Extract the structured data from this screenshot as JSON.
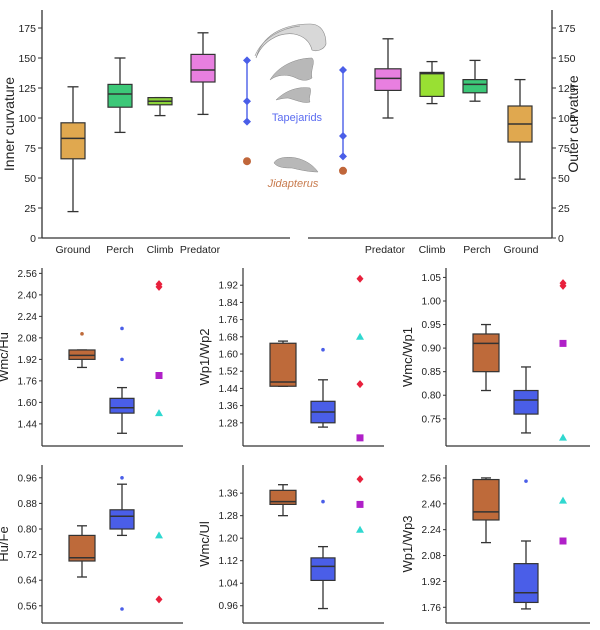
{
  "chart_data": [
    {
      "id": "inner",
      "type": "boxplot",
      "ylabel": "Inner curvature",
      "yaxis_side": "left",
      "ylim": [
        0,
        190
      ],
      "yticks": [
        0,
        25,
        50,
        75,
        100,
        125,
        150,
        175
      ],
      "categories": [
        "Ground",
        "Perch",
        "Climb",
        "Predator"
      ],
      "boxes": [
        {
          "name": "Ground",
          "color": "#E0A84F",
          "min": 22,
          "q1": 66,
          "median": 83,
          "q3": 96,
          "max": 126
        },
        {
          "name": "Perch",
          "color": "#3CC878",
          "min": 88,
          "q1": 109,
          "median": 120,
          "q3": 128,
          "max": 150
        },
        {
          "name": "Climb",
          "color": "#8CD33A",
          "min": 102,
          "q1": 111,
          "median": 114,
          "q3": 117,
          "max": 117
        },
        {
          "name": "Predator",
          "color": "#E87FE0",
          "min": 103,
          "q1": 130,
          "median": 140,
          "q3": 153,
          "max": 171
        }
      ],
      "tapejarids": {
        "label": "Tapejarids",
        "color": "#4A5EE8",
        "values": [
          97,
          114,
          148
        ]
      },
      "jidapterus": {
        "label": "Jidapterus",
        "color": "#C0663A",
        "value": 64
      }
    },
    {
      "id": "outer",
      "type": "boxplot",
      "ylabel": "Outer curvature",
      "yaxis_side": "right",
      "ylim": [
        0,
        190
      ],
      "yticks": [
        0,
        25,
        50,
        75,
        100,
        125,
        150,
        175
      ],
      "categories": [
        "Predator",
        "Climb",
        "Perch",
        "Ground"
      ],
      "boxes": [
        {
          "name": "Predator",
          "color": "#E87FE0",
          "min": 100,
          "q1": 123,
          "median": 133,
          "q3": 141,
          "max": 166
        },
        {
          "name": "Climb",
          "color": "#99E033",
          "min": 112,
          "q1": 118,
          "median": 137,
          "q3": 138,
          "max": 147
        },
        {
          "name": "Perch",
          "color": "#3CC878",
          "min": 114,
          "q1": 121,
          "median": 128,
          "q3": 132,
          "max": 148
        },
        {
          "name": "Ground",
          "color": "#E0A84F",
          "min": 49,
          "q1": 80,
          "median": 95,
          "q3": 110,
          "max": 132
        }
      ],
      "tapejarids": {
        "label": "Tapejarids",
        "color": "#4A5EE8",
        "values": [
          68,
          85,
          140
        ]
      },
      "jidapterus": {
        "label": "Jidapterus",
        "color": "#C0663A",
        "value": 56
      }
    },
    {
      "id": "wmc-hu",
      "type": "boxplot",
      "ylabel": "Wmc/Hu",
      "ylim": [
        1.32,
        2.6
      ],
      "yticks": [
        "1.44",
        "1.60",
        "1.76",
        "1.92",
        "2.08",
        "2.24",
        "2.40",
        "2.56"
      ],
      "brown": {
        "min": 1.86,
        "q1": 1.92,
        "median": 1.95,
        "q3": 1.99,
        "max": 1.99,
        "outliers": [
          2.11
        ]
      },
      "blue": {
        "min": 1.37,
        "q1": 1.52,
        "median": 1.56,
        "q3": 1.63,
        "max": 1.71,
        "outliers": [
          1.92,
          2.15
        ]
      },
      "markers": [
        {
          "shape": "diamond",
          "color": "#E8203C",
          "value": 2.48
        },
        {
          "shape": "diamond",
          "color": "#E8203C",
          "value": 2.46
        },
        {
          "shape": "square",
          "color": "#B020C8",
          "value": 1.8
        },
        {
          "shape": "triangle",
          "color": "#30D8D0",
          "value": 1.52
        }
      ]
    },
    {
      "id": "wp1-wp2",
      "type": "boxplot",
      "ylabel": "Wp1/Wp2",
      "ylim": [
        1.2,
        2.0
      ],
      "yticks": [
        "1.28",
        "1.36",
        "1.44",
        "1.52",
        "1.60",
        "1.68",
        "1.76",
        "1.84",
        "1.92"
      ],
      "brown": {
        "min": 1.45,
        "q1": 1.45,
        "median": 1.47,
        "q3": 1.65,
        "max": 1.66,
        "outliers": []
      },
      "blue": {
        "min": 1.26,
        "q1": 1.28,
        "median": 1.33,
        "q3": 1.38,
        "max": 1.48,
        "outliers": [
          1.62
        ]
      },
      "markers": [
        {
          "shape": "diamond",
          "color": "#E8203C",
          "value": 1.95
        },
        {
          "shape": "triangle",
          "color": "#30D8D0",
          "value": 1.68
        },
        {
          "shape": "diamond",
          "color": "#E8203C",
          "value": 1.46
        },
        {
          "shape": "square",
          "color": "#B020C8",
          "value": 1.21
        }
      ]
    },
    {
      "id": "wmc-wp1",
      "type": "boxplot",
      "ylabel": "Wmc/Wp1",
      "ylim": [
        0.705,
        1.07
      ],
      "yticks": [
        "0.75",
        "0.80",
        "0.85",
        "0.90",
        "0.95",
        "1.00",
        "1.05"
      ],
      "brown": {
        "min": 0.81,
        "q1": 0.85,
        "median": 0.91,
        "q3": 0.93,
        "max": 0.95,
        "outliers": []
      },
      "blue": {
        "min": 0.72,
        "q1": 0.76,
        "median": 0.79,
        "q3": 0.81,
        "max": 0.86,
        "outliers": []
      },
      "markers": [
        {
          "shape": "diamond",
          "color": "#E8203C",
          "value": 1.038
        },
        {
          "shape": "diamond",
          "color": "#E8203C",
          "value": 1.032
        },
        {
          "shape": "square",
          "color": "#B020C8",
          "value": 0.91
        },
        {
          "shape": "triangle",
          "color": "#30D8D0",
          "value": 0.71
        }
      ]
    },
    {
      "id": "hu-fe",
      "type": "boxplot",
      "ylabel": "Hu/Fe",
      "ylim": [
        0.525,
        1.0
      ],
      "yticks": [
        "0.56",
        "0.64",
        "0.72",
        "0.80",
        "0.88",
        "0.96"
      ],
      "brown": {
        "min": 0.65,
        "q1": 0.7,
        "median": 0.71,
        "q3": 0.78,
        "max": 0.81,
        "outliers": []
      },
      "blue": {
        "min": 0.78,
        "q1": 0.8,
        "median": 0.84,
        "q3": 0.86,
        "max": 0.94,
        "outliers": [
          0.55,
          0.96
        ]
      },
      "markers": [
        {
          "shape": "triangle",
          "color": "#30D8D0",
          "value": 0.78
        },
        {
          "shape": "diamond",
          "color": "#E8203C",
          "value": 0.58
        }
      ]
    },
    {
      "id": "wmc-ul",
      "type": "boxplot",
      "ylabel": "Wmc/Ul",
      "ylim": [
        0.92,
        1.46
      ],
      "yticks": [
        "0.96",
        "1.04",
        "1.12",
        "1.20",
        "1.28",
        "1.36"
      ],
      "brown": {
        "min": 1.28,
        "q1": 1.32,
        "median": 1.33,
        "q3": 1.37,
        "max": 1.39,
        "outliers": []
      },
      "blue": {
        "min": 0.95,
        "q1": 1.05,
        "median": 1.1,
        "q3": 1.13,
        "max": 1.17,
        "outliers": [
          1.33
        ]
      },
      "markers": [
        {
          "shape": "diamond",
          "color": "#E8203C",
          "value": 1.41
        },
        {
          "shape": "square",
          "color": "#B020C8",
          "value": 1.32
        },
        {
          "shape": "triangle",
          "color": "#30D8D0",
          "value": 1.23
        }
      ]
    },
    {
      "id": "wp1-wp3",
      "type": "boxplot",
      "ylabel": "Wp1/Wp3",
      "ylim": [
        1.7,
        2.64
      ],
      "yticks": [
        "1.76",
        "1.92",
        "2.08",
        "2.24",
        "2.40",
        "2.56"
      ],
      "brown": {
        "min": 2.16,
        "q1": 2.3,
        "median": 2.35,
        "q3": 2.55,
        "max": 2.56,
        "outliers": []
      },
      "blue": {
        "min": 1.75,
        "q1": 1.79,
        "median": 1.85,
        "q3": 2.03,
        "max": 2.17,
        "outliers": [
          2.54
        ]
      },
      "markers": [
        {
          "shape": "triangle",
          "color": "#30D8D0",
          "value": 2.42
        },
        {
          "shape": "square",
          "color": "#B020C8",
          "value": 2.17
        }
      ]
    }
  ],
  "colors": {
    "brown_box": "#BE6A3A",
    "blue_box": "#4A5EE8",
    "axis": "#333333",
    "claw_fill": "#B8B8B8"
  }
}
